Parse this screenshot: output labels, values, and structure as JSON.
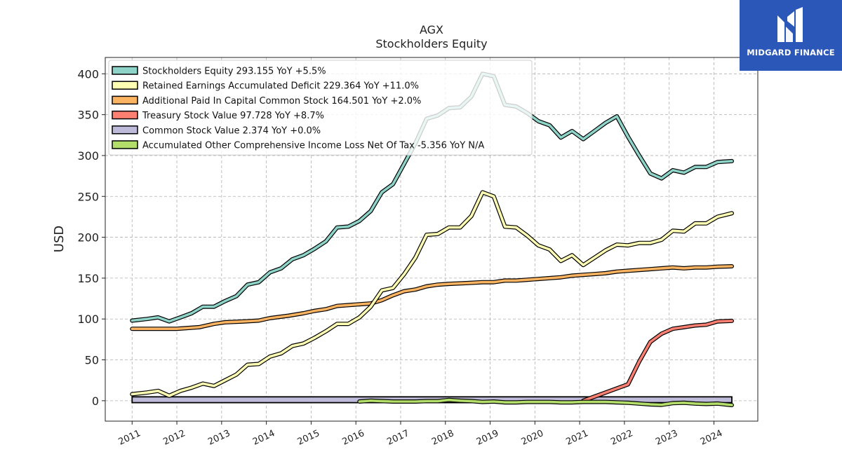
{
  "brand": {
    "name": "MIDGARD FINANCE",
    "logo_icon": "midgard-m-logo-icon"
  },
  "chart_data": {
    "type": "line",
    "title": "AGX",
    "subtitle": "Stockholders  Equity",
    "xlabel": "",
    "ylabel": "USD",
    "xlim": [
      2010.4,
      2024.98
    ],
    "ylim": [
      -25,
      420
    ],
    "yticks": [
      0,
      50,
      100,
      150,
      200,
      250,
      300,
      350,
      400
    ],
    "xticks": [
      2011,
      2012,
      2013,
      2014,
      2015,
      2016,
      2017,
      2018,
      2019,
      2020,
      2021,
      2022,
      2023,
      2024
    ],
    "grid": true,
    "legend_position": "top-left",
    "series": [
      {
        "name": "Stockholders Equity  293.155 YoY +5.5%",
        "color": "#8dd3c7",
        "points": [
          [
            2011.0,
            98
          ],
          [
            2011.33,
            100
          ],
          [
            2011.58,
            102
          ],
          [
            2011.83,
            97
          ],
          [
            2012.08,
            102
          ],
          [
            2012.33,
            107
          ],
          [
            2012.58,
            115
          ],
          [
            2012.83,
            115
          ],
          [
            2013.08,
            122
          ],
          [
            2013.33,
            128
          ],
          [
            2013.58,
            142
          ],
          [
            2013.83,
            145
          ],
          [
            2014.08,
            157
          ],
          [
            2014.33,
            162
          ],
          [
            2014.58,
            173
          ],
          [
            2014.83,
            178
          ],
          [
            2015.08,
            186
          ],
          [
            2015.33,
            195
          ],
          [
            2015.58,
            212
          ],
          [
            2015.83,
            213
          ],
          [
            2016.08,
            220
          ],
          [
            2016.33,
            232
          ],
          [
            2016.58,
            255
          ],
          [
            2016.83,
            265
          ],
          [
            2017.08,
            290
          ],
          [
            2017.33,
            315
          ],
          [
            2017.58,
            345
          ],
          [
            2017.83,
            349
          ],
          [
            2018.08,
            358
          ],
          [
            2018.33,
            359
          ],
          [
            2018.58,
            372
          ],
          [
            2018.83,
            400
          ],
          [
            2019.08,
            397
          ],
          [
            2019.33,
            362
          ],
          [
            2019.58,
            360
          ],
          [
            2019.83,
            352
          ],
          [
            2020.08,
            342
          ],
          [
            2020.33,
            337
          ],
          [
            2020.58,
            322
          ],
          [
            2020.83,
            330
          ],
          [
            2021.08,
            320
          ],
          [
            2021.33,
            330
          ],
          [
            2021.58,
            340
          ],
          [
            2021.83,
            348
          ],
          [
            2022.08,
            323
          ],
          [
            2022.33,
            300
          ],
          [
            2022.58,
            278
          ],
          [
            2022.83,
            272
          ],
          [
            2023.08,
            282
          ],
          [
            2023.33,
            279
          ],
          [
            2023.58,
            286
          ],
          [
            2023.83,
            286
          ],
          [
            2024.08,
            292
          ],
          [
            2024.4,
            293.155
          ]
        ]
      },
      {
        "name": "Retained Earnings Accumulated Deficit  229.364 YoY +11.0%",
        "color": "#ffffb3",
        "points": [
          [
            2011.0,
            8
          ],
          [
            2011.33,
            10
          ],
          [
            2011.58,
            12
          ],
          [
            2011.83,
            6
          ],
          [
            2012.08,
            12
          ],
          [
            2012.33,
            16
          ],
          [
            2012.58,
            21
          ],
          [
            2012.83,
            18
          ],
          [
            2013.08,
            25
          ],
          [
            2013.33,
            32
          ],
          [
            2013.58,
            44
          ],
          [
            2013.83,
            45
          ],
          [
            2014.08,
            54
          ],
          [
            2014.33,
            58
          ],
          [
            2014.58,
            67
          ],
          [
            2014.83,
            70
          ],
          [
            2015.08,
            77
          ],
          [
            2015.33,
            85
          ],
          [
            2015.58,
            94
          ],
          [
            2015.83,
            94
          ],
          [
            2016.08,
            102
          ],
          [
            2016.33,
            115
          ],
          [
            2016.58,
            135
          ],
          [
            2016.83,
            138
          ],
          [
            2017.08,
            155
          ],
          [
            2017.33,
            175
          ],
          [
            2017.58,
            203
          ],
          [
            2017.83,
            204
          ],
          [
            2018.08,
            212
          ],
          [
            2018.33,
            212
          ],
          [
            2018.58,
            226
          ],
          [
            2018.83,
            255
          ],
          [
            2019.08,
            250
          ],
          [
            2019.33,
            213
          ],
          [
            2019.58,
            212
          ],
          [
            2019.83,
            202
          ],
          [
            2020.08,
            190
          ],
          [
            2020.33,
            185
          ],
          [
            2020.58,
            171
          ],
          [
            2020.83,
            178
          ],
          [
            2021.08,
            166
          ],
          [
            2021.33,
            175
          ],
          [
            2021.58,
            184
          ],
          [
            2021.83,
            191
          ],
          [
            2022.08,
            190
          ],
          [
            2022.33,
            193
          ],
          [
            2022.58,
            193
          ],
          [
            2022.83,
            197
          ],
          [
            2023.08,
            208
          ],
          [
            2023.33,
            207
          ],
          [
            2023.58,
            217
          ],
          [
            2023.83,
            217
          ],
          [
            2024.08,
            225
          ],
          [
            2024.4,
            229.364
          ]
        ]
      },
      {
        "name": "Additional Paid In Capital Common Stock  164.501 YoY +2.0%",
        "color": "#fdb462",
        "points": [
          [
            2011.0,
            88
          ],
          [
            2011.5,
            88
          ],
          [
            2012.0,
            88
          ],
          [
            2012.5,
            90
          ],
          [
            2012.83,
            94
          ],
          [
            2013.08,
            96
          ],
          [
            2013.5,
            97
          ],
          [
            2013.83,
            98
          ],
          [
            2014.08,
            101
          ],
          [
            2014.5,
            104
          ],
          [
            2014.83,
            107
          ],
          [
            2015.08,
            110
          ],
          [
            2015.33,
            112
          ],
          [
            2015.58,
            116
          ],
          [
            2015.83,
            117
          ],
          [
            2016.08,
            118
          ],
          [
            2016.33,
            119
          ],
          [
            2016.58,
            123
          ],
          [
            2016.83,
            129
          ],
          [
            2017.08,
            134
          ],
          [
            2017.33,
            136
          ],
          [
            2017.58,
            140
          ],
          [
            2017.83,
            142
          ],
          [
            2018.08,
            143
          ],
          [
            2018.5,
            144
          ],
          [
            2018.83,
            145
          ],
          [
            2019.08,
            145
          ],
          [
            2019.33,
            147
          ],
          [
            2019.58,
            147
          ],
          [
            2019.83,
            148
          ],
          [
            2020.08,
            149
          ],
          [
            2020.33,
            150
          ],
          [
            2020.58,
            151
          ],
          [
            2020.83,
            153
          ],
          [
            2021.08,
            154
          ],
          [
            2021.33,
            155
          ],
          [
            2021.58,
            156
          ],
          [
            2021.83,
            158
          ],
          [
            2022.08,
            159
          ],
          [
            2022.33,
            160
          ],
          [
            2022.58,
            161
          ],
          [
            2022.83,
            162
          ],
          [
            2023.08,
            163
          ],
          [
            2023.33,
            162
          ],
          [
            2023.58,
            163
          ],
          [
            2023.83,
            163
          ],
          [
            2024.08,
            164
          ],
          [
            2024.4,
            164.501
          ]
        ]
      },
      {
        "name": "Treasury Stock Value  97.728 YoY +8.7%",
        "color": "#fb8072",
        "points": [
          [
            2021.08,
            0
          ],
          [
            2021.33,
            5
          ],
          [
            2021.58,
            10
          ],
          [
            2021.83,
            15
          ],
          [
            2022.08,
            20
          ],
          [
            2022.33,
            48
          ],
          [
            2022.58,
            72
          ],
          [
            2022.83,
            82
          ],
          [
            2023.08,
            88
          ],
          [
            2023.33,
            90
          ],
          [
            2023.58,
            92
          ],
          [
            2023.83,
            93
          ],
          [
            2024.08,
            97
          ],
          [
            2024.4,
            97.728
          ]
        ]
      },
      {
        "name": "Common Stock Value  2.374 YoY +0.0%",
        "color": "#bebada",
        "fill": true,
        "points": [
          [
            2011.0,
            2.374
          ],
          [
            2024.4,
            2.374
          ]
        ]
      },
      {
        "name": "Accumulated Other Comprehensive Income Loss Net Of Tax  -5.356 YoY N/A",
        "color": "#b3de69",
        "points": [
          [
            2016.08,
            -1
          ],
          [
            2016.33,
            0
          ],
          [
            2016.58,
            -0.5
          ],
          [
            2016.83,
            -1
          ],
          [
            2017.08,
            -1
          ],
          [
            2017.33,
            -1
          ],
          [
            2017.58,
            -0.5
          ],
          [
            2017.83,
            -0.5
          ],
          [
            2018.08,
            1
          ],
          [
            2018.33,
            0
          ],
          [
            2018.58,
            -0.5
          ],
          [
            2018.83,
            -1.5
          ],
          [
            2019.08,
            -1
          ],
          [
            2019.33,
            -2
          ],
          [
            2019.58,
            -2
          ],
          [
            2019.83,
            -1.5
          ],
          [
            2020.08,
            -1.5
          ],
          [
            2020.33,
            -1.5
          ],
          [
            2020.58,
            -2
          ],
          [
            2020.83,
            -2
          ],
          [
            2021.08,
            -1.5
          ],
          [
            2021.33,
            -1.5
          ],
          [
            2021.58,
            -1.5
          ],
          [
            2021.83,
            -2
          ],
          [
            2022.08,
            -2.5
          ],
          [
            2022.33,
            -3.5
          ],
          [
            2022.58,
            -4.5
          ],
          [
            2022.83,
            -5
          ],
          [
            2023.08,
            -3
          ],
          [
            2023.33,
            -2.5
          ],
          [
            2023.58,
            -3.5
          ],
          [
            2023.83,
            -4
          ],
          [
            2024.08,
            -3.5
          ],
          [
            2024.4,
            -5.356
          ]
        ]
      }
    ]
  }
}
